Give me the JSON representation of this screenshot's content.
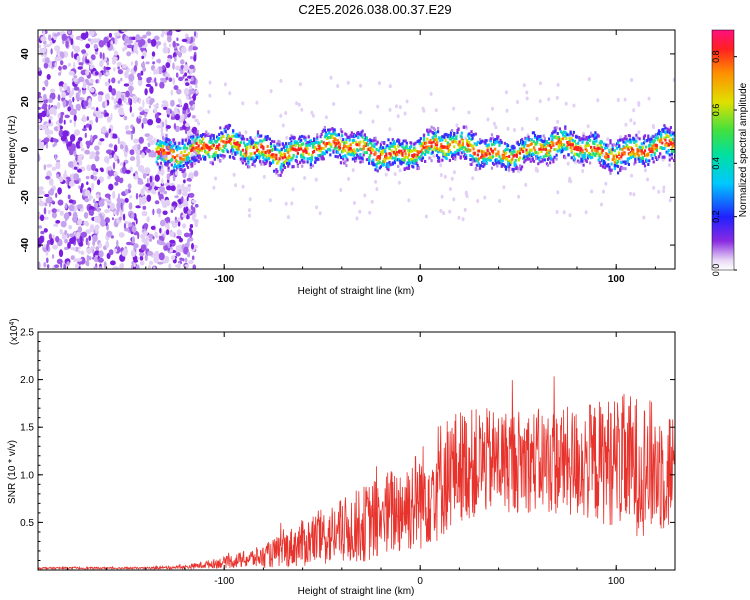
{
  "title": "C2E5.2026.038.00.37.E29",
  "chart_data": [
    {
      "type": "heatmap",
      "xlabel": "Height of straight line (km)",
      "ylabel": "Frequency (Hz)",
      "xlim": [
        -195,
        130
      ],
      "ylim": [
        -50,
        50
      ],
      "xticks": [
        -100,
        0,
        100
      ],
      "yticks": [
        -40,
        -20,
        0,
        20,
        40
      ],
      "noise_region_x": [
        -195,
        -120
      ],
      "signal_band": {
        "x_start": -135,
        "x_end": 130,
        "center_hz": 0,
        "halfwidth_hz": 5
      },
      "colorbar": {
        "label": "Normalized spectral amplitude",
        "ticks": [
          "0.0",
          "0.2",
          "0.4",
          "0.6",
          "0.8"
        ],
        "range": [
          0,
          0.9
        ]
      }
    },
    {
      "type": "line",
      "color": "#e8322c",
      "xlabel": "Height of straight line (km)",
      "ylabel": "SNR (10 * v/v)",
      "scale_label_base": "(x10",
      "scale_label_exp": "4",
      "scale_label_close": ")",
      "xlim": [
        -195,
        130
      ],
      "ylim": [
        0,
        2.5
      ],
      "xticks": [
        -100,
        0,
        100
      ],
      "yticks": [
        "0.5",
        "1.0",
        "1.5",
        "2.0",
        "2.5"
      ],
      "envelope": {
        "x": [
          -195,
          -140,
          -120,
          -100,
          -80,
          -60,
          -40,
          -20,
          0,
          10,
          20,
          40,
          60,
          80,
          100,
          110,
          130
        ],
        "mean": [
          0.02,
          0.02,
          0.03,
          0.08,
          0.14,
          0.28,
          0.4,
          0.55,
          0.75,
          0.95,
          1.1,
          1.15,
          1.15,
          1.12,
          1.15,
          1.1,
          1.05
        ],
        "amp": [
          0.01,
          0.01,
          0.02,
          0.06,
          0.12,
          0.25,
          0.35,
          0.45,
          0.55,
          0.65,
          0.6,
          0.55,
          0.55,
          0.6,
          0.7,
          0.75,
          0.65
        ]
      }
    }
  ]
}
